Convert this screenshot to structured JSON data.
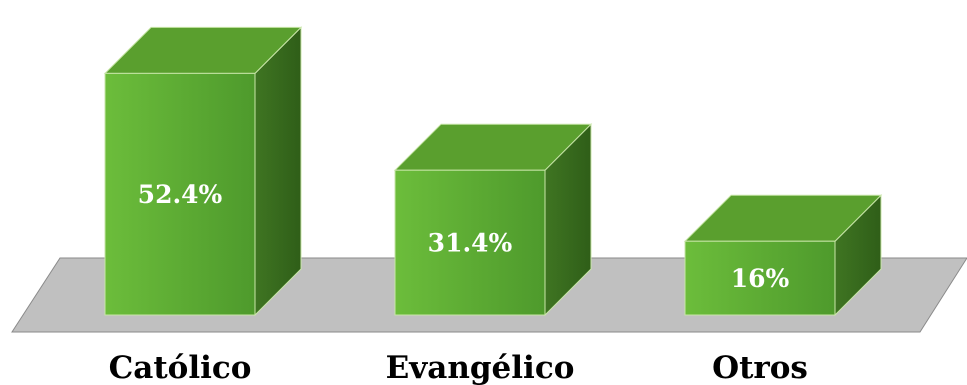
{
  "chart_data": {
    "type": "bar",
    "style": "3d",
    "categories": [
      "Católico",
      "Evangélico",
      "Otros"
    ],
    "values": [
      52.4,
      31.4,
      16
    ],
    "value_labels": [
      "52.4%",
      "31.4%",
      "16%"
    ],
    "title": "",
    "xlabel": "",
    "ylabel": "",
    "ylim": [
      0,
      60
    ],
    "grid": false,
    "legend": "none"
  },
  "colors": {
    "bar_front_light": "#6cbd3b",
    "bar_front_dark": "#4e9a2c",
    "bar_top": "#5a9f2e",
    "bar_side": "#3f7522",
    "bar_edge": "#c8e6a8",
    "floor": "#c0c0c0",
    "floor_edge": "#8a8a8a"
  }
}
